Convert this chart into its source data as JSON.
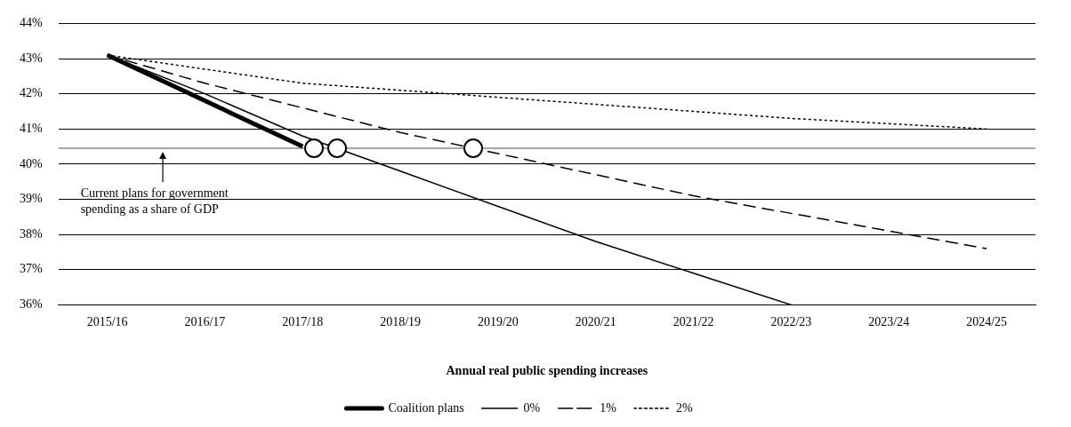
{
  "chart_data": {
    "type": "line",
    "xlabel": "Annual real public spending increases",
    "categories": [
      "2015/16",
      "2016/17",
      "2017/18",
      "2018/19",
      "2019/20",
      "2020/21",
      "2021/22",
      "2022/23",
      "2023/24",
      "2024/25"
    ],
    "series": [
      {
        "name": "Coalition plans",
        "color": "#000000",
        "line_style": "solid",
        "values": [
          43.1,
          41.8,
          40.5,
          null,
          null,
          null,
          null,
          null,
          null,
          null
        ]
      },
      {
        "name": "0%",
        "color": "#000000",
        "line_style": "solid",
        "values": [
          43.1,
          42.0,
          40.8,
          39.8,
          38.8,
          37.8,
          36.9,
          36.0,
          null,
          null
        ]
      },
      {
        "name": "1%",
        "color": "#000000",
        "line_style": "dashed",
        "values": [
          43.1,
          42.3,
          41.6,
          40.9,
          40.3,
          39.7,
          39.1,
          38.6,
          38.1,
          37.6
        ]
      },
      {
        "name": "2%",
        "color": "#000000",
        "line_style": "dotted",
        "values": [
          43.1,
          42.7,
          42.3,
          42.1,
          41.9,
          41.7,
          41.5,
          41.3,
          41.15,
          41.0
        ]
      }
    ],
    "ylim": [
      36,
      44
    ],
    "yticks": [
      {
        "value": 36,
        "label": "36%"
      },
      {
        "value": 37,
        "label": "37%"
      },
      {
        "value": 38,
        "label": "38%"
      },
      {
        "value": 39,
        "label": "39%"
      },
      {
        "value": 40,
        "label": "40%"
      },
      {
        "value": 41,
        "label": "41%"
      },
      {
        "value": 42,
        "label": "42%"
      },
      {
        "value": 43,
        "label": "43%"
      },
      {
        "value": 44,
        "label": "44%"
      }
    ],
    "ref_lines": [
      {
        "axis": "y",
        "value": 40.45,
        "label": "Current plans for government spending as a share of GDP",
        "color": "#a6a6a6"
      }
    ],
    "grid": "y",
    "legend": "bottom",
    "marker": "none"
  }
}
